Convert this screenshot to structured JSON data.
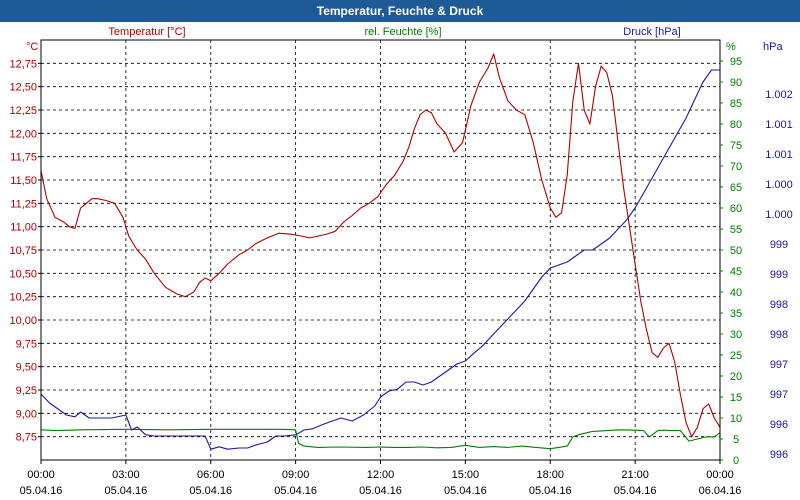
{
  "title": "Temperatur, Feuchte & Druck",
  "colors": {
    "title_bar": "#1e5a96",
    "temperature": "#b00000",
    "humidity": "#008000",
    "pressure": "#1a1a9c"
  },
  "chart_data": {
    "type": "line",
    "title": "Temperatur, Feuchte & Druck",
    "x_ticks": [
      {
        "time": "00:00",
        "date": "05.04.16",
        "h": 0
      },
      {
        "time": "03:00",
        "date": "05.04.16",
        "h": 3
      },
      {
        "time": "06:00",
        "date": "05.04.16",
        "h": 6
      },
      {
        "time": "09:00",
        "date": "05.04.16",
        "h": 9
      },
      {
        "time": "12:00",
        "date": "05.04.16",
        "h": 12
      },
      {
        "time": "15:00",
        "date": "05.04.16",
        "h": 15
      },
      {
        "time": "18:00",
        "date": "05.04.16",
        "h": 18
      },
      {
        "time": "21:00",
        "date": "05.04.16",
        "h": 21
      },
      {
        "time": "00:00",
        "date": "06.04.16",
        "h": 24
      }
    ],
    "xlim": [
      0,
      24
    ],
    "axes": {
      "temperature": {
        "unit": "°C",
        "label": "Temperatur [°C]",
        "ylim": [
          8.5,
          13.0
        ],
        "ticks": [
          "8,75",
          "9,00",
          "9,25",
          "9,50",
          "9,75",
          "10,00",
          "10,25",
          "10,50",
          "10,75",
          "11,00",
          "11,25",
          "11,50",
          "11,75",
          "12,00",
          "12,25",
          "12,50",
          "12,75"
        ],
        "tick_values": [
          8.75,
          9.0,
          9.25,
          9.5,
          9.75,
          10.0,
          10.25,
          10.5,
          10.75,
          11.0,
          11.25,
          11.5,
          11.75,
          12.0,
          12.25,
          12.5,
          12.75
        ]
      },
      "humidity": {
        "unit": "%",
        "label": "rel. Feuchte [%]",
        "ylim": [
          0,
          100
        ],
        "ticks": [
          "0",
          "5",
          "10",
          "15",
          "20",
          "25",
          "30",
          "35",
          "40",
          "45",
          "50",
          "55",
          "60",
          "65",
          "70",
          "75",
          "80",
          "85",
          "90",
          "95"
        ],
        "tick_values": [
          0,
          5,
          10,
          15,
          20,
          25,
          30,
          35,
          40,
          45,
          50,
          55,
          60,
          65,
          70,
          75,
          80,
          85,
          90,
          95
        ]
      },
      "pressure": {
        "unit": "hPa",
        "label": "Druck [hPa]",
        "ylim": [
          995.9,
          1002.9
        ],
        "ticks": [
          "996",
          "996",
          "997",
          "997",
          "998",
          "998",
          "999",
          "999",
          "1.000",
          "1.000",
          "1.001",
          "1.001",
          "1.002"
        ],
        "tick_values": [
          996.0,
          996.5,
          997.0,
          997.5,
          998.0,
          998.5,
          999.0,
          999.5,
          1000.0,
          1000.5,
          1001.0,
          1001.5,
          1002.0
        ]
      }
    },
    "series": [
      {
        "name": "Temperatur [°C]",
        "axis": "temperature",
        "x": [
          0,
          0.2,
          0.5,
          0.8,
          1.0,
          1.2,
          1.4,
          1.6,
          1.8,
          2.0,
          2.3,
          2.6,
          2.9,
          3.1,
          3.4,
          3.7,
          4.0,
          4.4,
          4.8,
          5.1,
          5.4,
          5.6,
          5.8,
          6.0,
          6.3,
          6.6,
          7.0,
          7.3,
          7.6,
          8.0,
          8.4,
          8.8,
          9.2,
          9.5,
          9.8,
          10.1,
          10.4,
          10.7,
          11.0,
          11.3,
          11.6,
          11.9,
          12.2,
          12.5,
          12.8,
          13.0,
          13.2,
          13.4,
          13.6,
          13.8,
          14.0,
          14.3,
          14.6,
          14.9,
          15.2,
          15.5,
          15.8,
          16.0,
          16.2,
          16.5,
          16.8,
          17.1,
          17.4,
          17.7,
          18.0,
          18.2,
          18.4,
          18.6,
          18.8,
          19.0,
          19.2,
          19.4,
          19.6,
          19.8,
          20.0,
          20.2,
          20.4,
          20.6,
          20.8,
          21.0,
          21.2,
          21.4,
          21.6,
          21.8,
          22.0,
          22.2,
          22.4,
          22.6,
          22.8,
          23.0,
          23.2,
          23.4,
          23.6,
          23.8,
          24.0
        ],
        "y": [
          11.6,
          11.3,
          11.1,
          11.05,
          11.0,
          10.98,
          11.2,
          11.25,
          11.3,
          11.3,
          11.28,
          11.25,
          11.1,
          10.9,
          10.75,
          10.65,
          10.5,
          10.35,
          10.28,
          10.25,
          10.3,
          10.4,
          10.45,
          10.42,
          10.5,
          10.6,
          10.7,
          10.75,
          10.82,
          10.88,
          10.93,
          10.92,
          10.9,
          10.88,
          10.9,
          10.92,
          10.95,
          11.05,
          11.12,
          11.2,
          11.25,
          11.32,
          11.45,
          11.55,
          11.7,
          11.85,
          12.05,
          12.2,
          12.25,
          12.22,
          12.1,
          12.0,
          11.8,
          11.9,
          12.3,
          12.55,
          12.7,
          12.85,
          12.6,
          12.35,
          12.25,
          12.2,
          11.9,
          11.5,
          11.2,
          11.1,
          11.15,
          11.55,
          12.35,
          12.75,
          12.25,
          12.1,
          12.5,
          12.72,
          12.65,
          12.4,
          11.9,
          11.4,
          11.0,
          10.6,
          10.2,
          9.9,
          9.65,
          9.6,
          9.7,
          9.75,
          9.55,
          9.2,
          8.9,
          8.75,
          8.85,
          9.05,
          9.1,
          8.95,
          8.85
        ]
      },
      {
        "name": "rel. Feuchte [%]",
        "axis": "humidity",
        "x": [
          0,
          0.5,
          1.5,
          3,
          4.5,
          6,
          7.5,
          8.5,
          9.0,
          9.1,
          9.3,
          9.8,
          10.5,
          11.5,
          12.0,
          12.5,
          13.0,
          13.5,
          14.0,
          14.5,
          15.0,
          15.5,
          16.0,
          16.5,
          17.0,
          17.5,
          18.0,
          18.3,
          18.6,
          18.8,
          19.0,
          19.3,
          19.5,
          20.0,
          20.5,
          21.0,
          21.3,
          21.5,
          21.8,
          22.0,
          22.3,
          22.6,
          22.9,
          23.2,
          23.5,
          23.8,
          24.0
        ],
        "y": [
          7.2,
          7.0,
          7.2,
          7.3,
          7.2,
          7.3,
          7.3,
          7.3,
          7.2,
          4.0,
          3.3,
          3.0,
          3.1,
          3.0,
          3.1,
          3.0,
          3.0,
          3.1,
          2.9,
          3.0,
          3.5,
          3.0,
          3.2,
          3.0,
          3.3,
          3.0,
          2.7,
          3.0,
          3.3,
          5.5,
          6.0,
          6.5,
          6.8,
          7.0,
          7.2,
          7.1,
          7.0,
          5.5,
          7.0,
          7.1,
          7.0,
          7.0,
          4.5,
          5.0,
          5.5,
          5.5,
          6.5
        ]
      },
      {
        "name": "Druck [hPa]",
        "axis": "pressure",
        "x": [
          0,
          0.3,
          0.6,
          0.9,
          1.2,
          1.4,
          1.7,
          2.0,
          2.5,
          3.0,
          3.2,
          3.4,
          3.7,
          4.0,
          4.3,
          4.6,
          4.9,
          5.2,
          5.5,
          5.8,
          6.0,
          6.3,
          6.6,
          7.0,
          7.3,
          7.6,
          8.0,
          8.3,
          8.6,
          9.0,
          9.3,
          9.6,
          10.0,
          10.3,
          10.6,
          11.0,
          11.4,
          11.8,
          12.0,
          12.3,
          12.6,
          12.9,
          13.2,
          13.5,
          13.8,
          14.1,
          14.4,
          14.7,
          15.0,
          15.3,
          15.6,
          15.9,
          16.2,
          16.5,
          16.8,
          17.1,
          17.4,
          17.7,
          18.0,
          18.3,
          18.6,
          18.9,
          19.2,
          19.5,
          19.8,
          20.1,
          20.4,
          20.7,
          21.0,
          21.3,
          21.6,
          21.9,
          22.2,
          22.5,
          22.8,
          23.1,
          23.4,
          23.7,
          24.0
        ],
        "y": [
          997.0,
          996.85,
          996.75,
          996.65,
          996.62,
          996.7,
          996.6,
          996.6,
          996.6,
          996.65,
          996.4,
          996.45,
          996.32,
          996.3,
          996.3,
          996.3,
          996.3,
          996.3,
          996.3,
          996.3,
          996.08,
          996.12,
          996.08,
          996.1,
          996.1,
          996.15,
          996.2,
          996.3,
          996.3,
          996.32,
          996.4,
          996.42,
          996.5,
          996.55,
          996.6,
          996.55,
          996.65,
          996.8,
          996.95,
          997.05,
          997.08,
          997.2,
          997.2,
          997.15,
          997.2,
          997.3,
          997.4,
          997.5,
          997.55,
          997.68,
          997.8,
          997.95,
          998.1,
          998.25,
          998.4,
          998.55,
          998.75,
          998.95,
          999.1,
          999.15,
          999.2,
          999.3,
          999.4,
          999.4,
          999.5,
          999.6,
          999.75,
          999.9,
          1000.1,
          1000.35,
          1000.6,
          1000.85,
          1001.1,
          1001.35,
          1001.6,
          1001.9,
          1002.2,
          1002.4,
          1002.4
        ]
      }
    ],
    "grid": true,
    "legend": "top"
  }
}
